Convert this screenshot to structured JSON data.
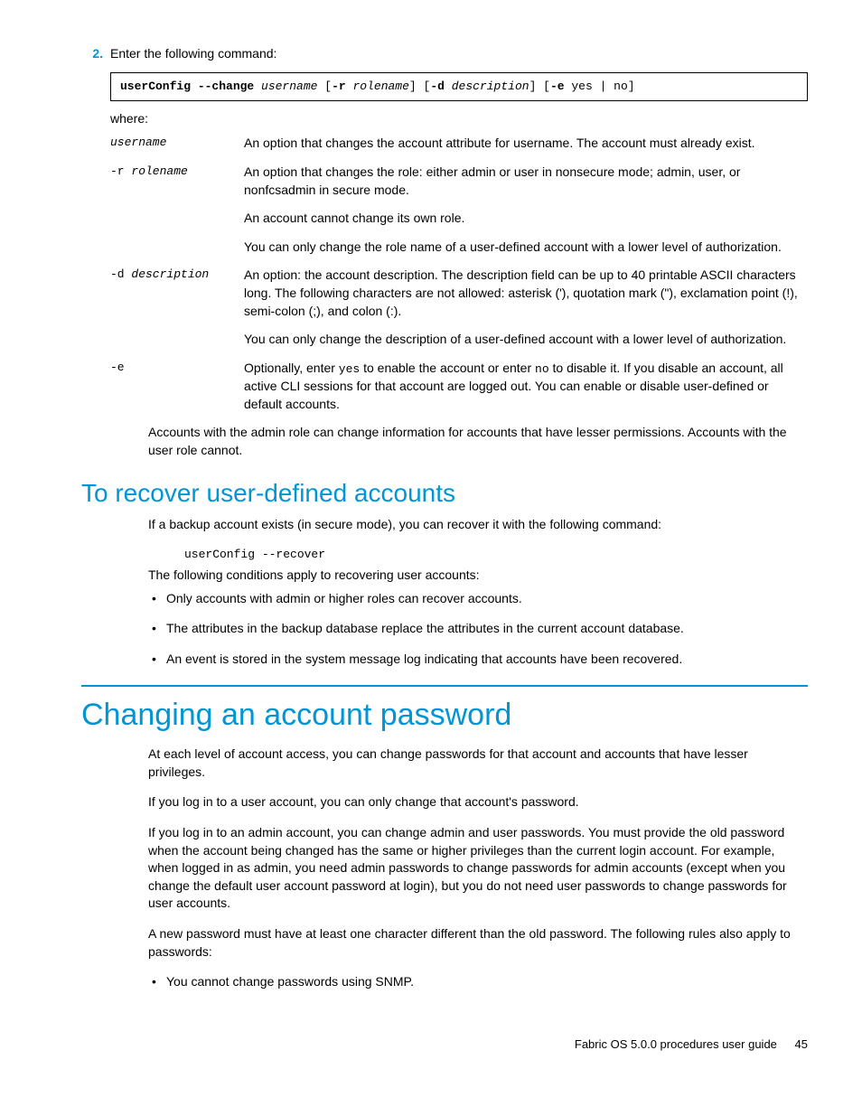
{
  "step": {
    "num": "2.",
    "text": "Enter the following command:"
  },
  "command": {
    "parts": [
      {
        "t": "userConfig --change ",
        "cls": "bold"
      },
      {
        "t": "username",
        "cls": "italic"
      },
      {
        "t": " [",
        "cls": ""
      },
      {
        "t": "-r",
        "cls": "bold"
      },
      {
        "t": " ",
        "cls": ""
      },
      {
        "t": "rolename",
        "cls": "italic"
      },
      {
        "t": "] [",
        "cls": ""
      },
      {
        "t": "-d",
        "cls": "bold"
      },
      {
        "t": " ",
        "cls": ""
      },
      {
        "t": "description",
        "cls": "italic"
      },
      {
        "t": "] [",
        "cls": ""
      },
      {
        "t": "-e",
        "cls": "bold"
      },
      {
        "t": " yes | no]",
        "cls": ""
      }
    ]
  },
  "where": "where:",
  "params": [
    {
      "name_html": "username",
      "desc": [
        "An option that changes the account attribute for username. The account must already exist."
      ]
    },
    {
      "name_html": "<span class=\"plain\">-r </span>rolename",
      "desc": [
        "An option that changes the role: either admin or user in nonsecure mode; admin, user, or nonfcsadmin in secure mode.",
        "An account cannot change its own role.",
        "You can only change the role name of a user-defined account with a lower level of authorization."
      ]
    },
    {
      "name_html": "<span class=\"plain\">-d </span>description",
      "desc": [
        "An option: the account description. The description field can be up to 40 printable ASCII characters long. The following characters are not allowed: asterisk ('), quotation mark (\"), exclamation point (!), semi-colon (;), and colon (:).",
        "You can only change the description of a user-defined account with a lower level of authorization."
      ]
    },
    {
      "name_html": "<span class=\"plain\">-e</span>",
      "desc_html": "Optionally, enter <span class=\"mono\">yes</span> to enable the account or enter <span class=\"mono\">no</span> to disable it. If you disable an account, all active CLI sessions for that account are logged out. You can enable or disable user-defined or default accounts."
    }
  ],
  "after_table": "Accounts with the admin role can change information for accounts that have lesser permissions. Accounts with the user role cannot.",
  "recover": {
    "heading": "To recover user-defined accounts",
    "intro": "If a backup account exists (in secure mode), you can recover it with the following command:",
    "code": "userConfig --recover",
    "cond_intro": "The following conditions apply to recovering user accounts:",
    "bullets": [
      "Only accounts with admin or higher roles can recover accounts.",
      "The attributes in the backup database replace the attributes in the current account database.",
      "An event is stored in the system message log indicating that accounts have been recovered."
    ]
  },
  "changing": {
    "heading": "Changing an account password",
    "paras": [
      "At each level of account access, you can change passwords for that account and accounts that have lesser privileges.",
      "If you log in to a user account, you can only change that account's password.",
      "If you log in to an admin account, you can change admin and user passwords. You must provide the old password when the account being changed has the same or higher privileges than the current login account. For example, when logged in as admin, you need admin passwords to change passwords for admin accounts (except when you change the default user account password at login), but you do not need user passwords to change passwords for user accounts.",
      "A new password must have at least one character different than the old password. The following rules also apply to passwords:"
    ],
    "bullets": [
      "You cannot change passwords using SNMP."
    ]
  },
  "footer": {
    "text": "Fabric OS 5.0.0 procedures user guide",
    "page": "45"
  }
}
